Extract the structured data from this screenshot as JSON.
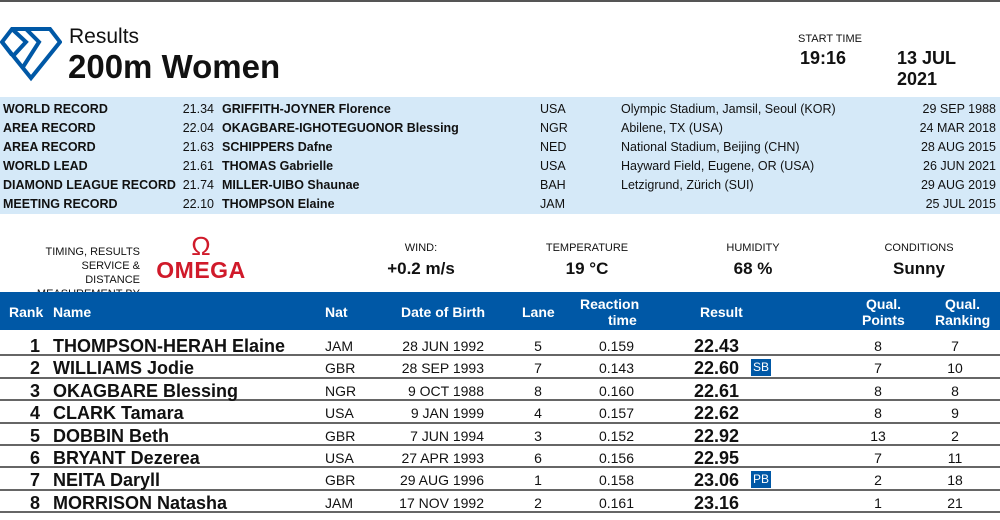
{
  "header": {
    "subtitle": "Results",
    "event": "200m Women",
    "start_time_label": "START TIME",
    "start_time": "19:16",
    "date": "13 JUL 2021",
    "brand_color": "#0058a6"
  },
  "records": [
    {
      "type": "WORLD RECORD",
      "mark": "21.34",
      "athlete": "GRIFFITH-JOYNER Florence",
      "nat": "USA",
      "venue": "Olympic Stadium, Jamsil, Seoul (KOR)",
      "date": "29 SEP 1988"
    },
    {
      "type": "AREA RECORD",
      "mark": "22.04",
      "athlete": "OKAGBARE-IGHOTEGUONOR Blessing",
      "nat": "NGR",
      "venue": "Abilene, TX (USA)",
      "date": "24 MAR 2018"
    },
    {
      "type": "AREA RECORD",
      "mark": "21.63",
      "athlete": "SCHIPPERS Dafne",
      "nat": "NED",
      "venue": "National Stadium, Beijing (CHN)",
      "date": "28 AUG 2015"
    },
    {
      "type": "WORLD LEAD",
      "mark": "21.61",
      "athlete": "THOMAS Gabrielle",
      "nat": "USA",
      "venue": "Hayward Field, Eugene, OR (USA)",
      "date": "26 JUN 2021"
    },
    {
      "type": "DIAMOND LEAGUE RECORD",
      "mark": "21.74",
      "athlete": "MILLER-UIBO Shaunae",
      "nat": "BAH",
      "venue": "Letzigrund, Zürich (SUI)",
      "date": "29 AUG 2019"
    },
    {
      "type": "MEETING RECORD",
      "mark": "22.10",
      "athlete": "THOMPSON Elaine",
      "nat": "JAM",
      "venue": "",
      "date": "25 JUL 2015"
    }
  ],
  "timing": {
    "line1": "TIMING, RESULTS SERVICE &",
    "line2": "DISTANCE MEASUREMENT BY",
    "brand": "OMEGA",
    "brand_symbol": "Ω",
    "brand_color": "#d01a2a"
  },
  "conditions": [
    {
      "label": "WIND:",
      "value": "+0.2 m/s"
    },
    {
      "label": "TEMPERATURE",
      "value": "19 °C"
    },
    {
      "label": "HUMIDITY",
      "value": "68 %"
    },
    {
      "label": "CONDITIONS",
      "value": "Sunny"
    }
  ],
  "table": {
    "headers": {
      "rank": "Rank",
      "name": "Name",
      "nat": "Nat",
      "dob": "Date of Birth",
      "lane": "Lane",
      "rt1": "Reaction",
      "rt2": "time",
      "result": "Result",
      "qp1": "Qual.",
      "qp2": "Points",
      "qr1": "Qual.",
      "qr2": "Ranking"
    },
    "rows": [
      {
        "rank": "1",
        "name": "THOMPSON-HERAH Elaine",
        "nat": "JAM",
        "dob": "28 JUN 1992",
        "lane": "5",
        "rt": "0.159",
        "result": "22.43",
        "badge": "",
        "qp": "8",
        "qr": "7"
      },
      {
        "rank": "2",
        "name": "WILLIAMS Jodie",
        "nat": "GBR",
        "dob": "28 SEP 1993",
        "lane": "7",
        "rt": "0.143",
        "result": "22.60",
        "badge": "SB",
        "qp": "7",
        "qr": "10"
      },
      {
        "rank": "3",
        "name": "OKAGBARE Blessing",
        "nat": "NGR",
        "dob": "9 OCT 1988",
        "lane": "8",
        "rt": "0.160",
        "result": "22.61",
        "badge": "",
        "qp": "8",
        "qr": "8"
      },
      {
        "rank": "4",
        "name": "CLARK Tamara",
        "nat": "USA",
        "dob": "9 JAN 1999",
        "lane": "4",
        "rt": "0.157",
        "result": "22.62",
        "badge": "",
        "qp": "8",
        "qr": "9"
      },
      {
        "rank": "5",
        "name": "DOBBIN Beth",
        "nat": "GBR",
        "dob": "7 JUN 1994",
        "lane": "3",
        "rt": "0.152",
        "result": "22.92",
        "badge": "",
        "qp": "13",
        "qr": "2"
      },
      {
        "rank": "6",
        "name": "BRYANT Dezerea",
        "nat": "USA",
        "dob": "27 APR 1993",
        "lane": "6",
        "rt": "0.156",
        "result": "22.95",
        "badge": "",
        "qp": "7",
        "qr": "11"
      },
      {
        "rank": "7",
        "name": "NEITA Daryll",
        "nat": "GBR",
        "dob": "29 AUG 1996",
        "lane": "1",
        "rt": "0.158",
        "result": "23.06",
        "badge": "PB",
        "qp": "2",
        "qr": "18"
      },
      {
        "rank": "8",
        "name": "MORRISON Natasha",
        "nat": "JAM",
        "dob": "17 NOV 1992",
        "lane": "2",
        "rt": "0.161",
        "result": "23.16",
        "badge": "",
        "qp": "1",
        "qr": "21"
      }
    ]
  }
}
